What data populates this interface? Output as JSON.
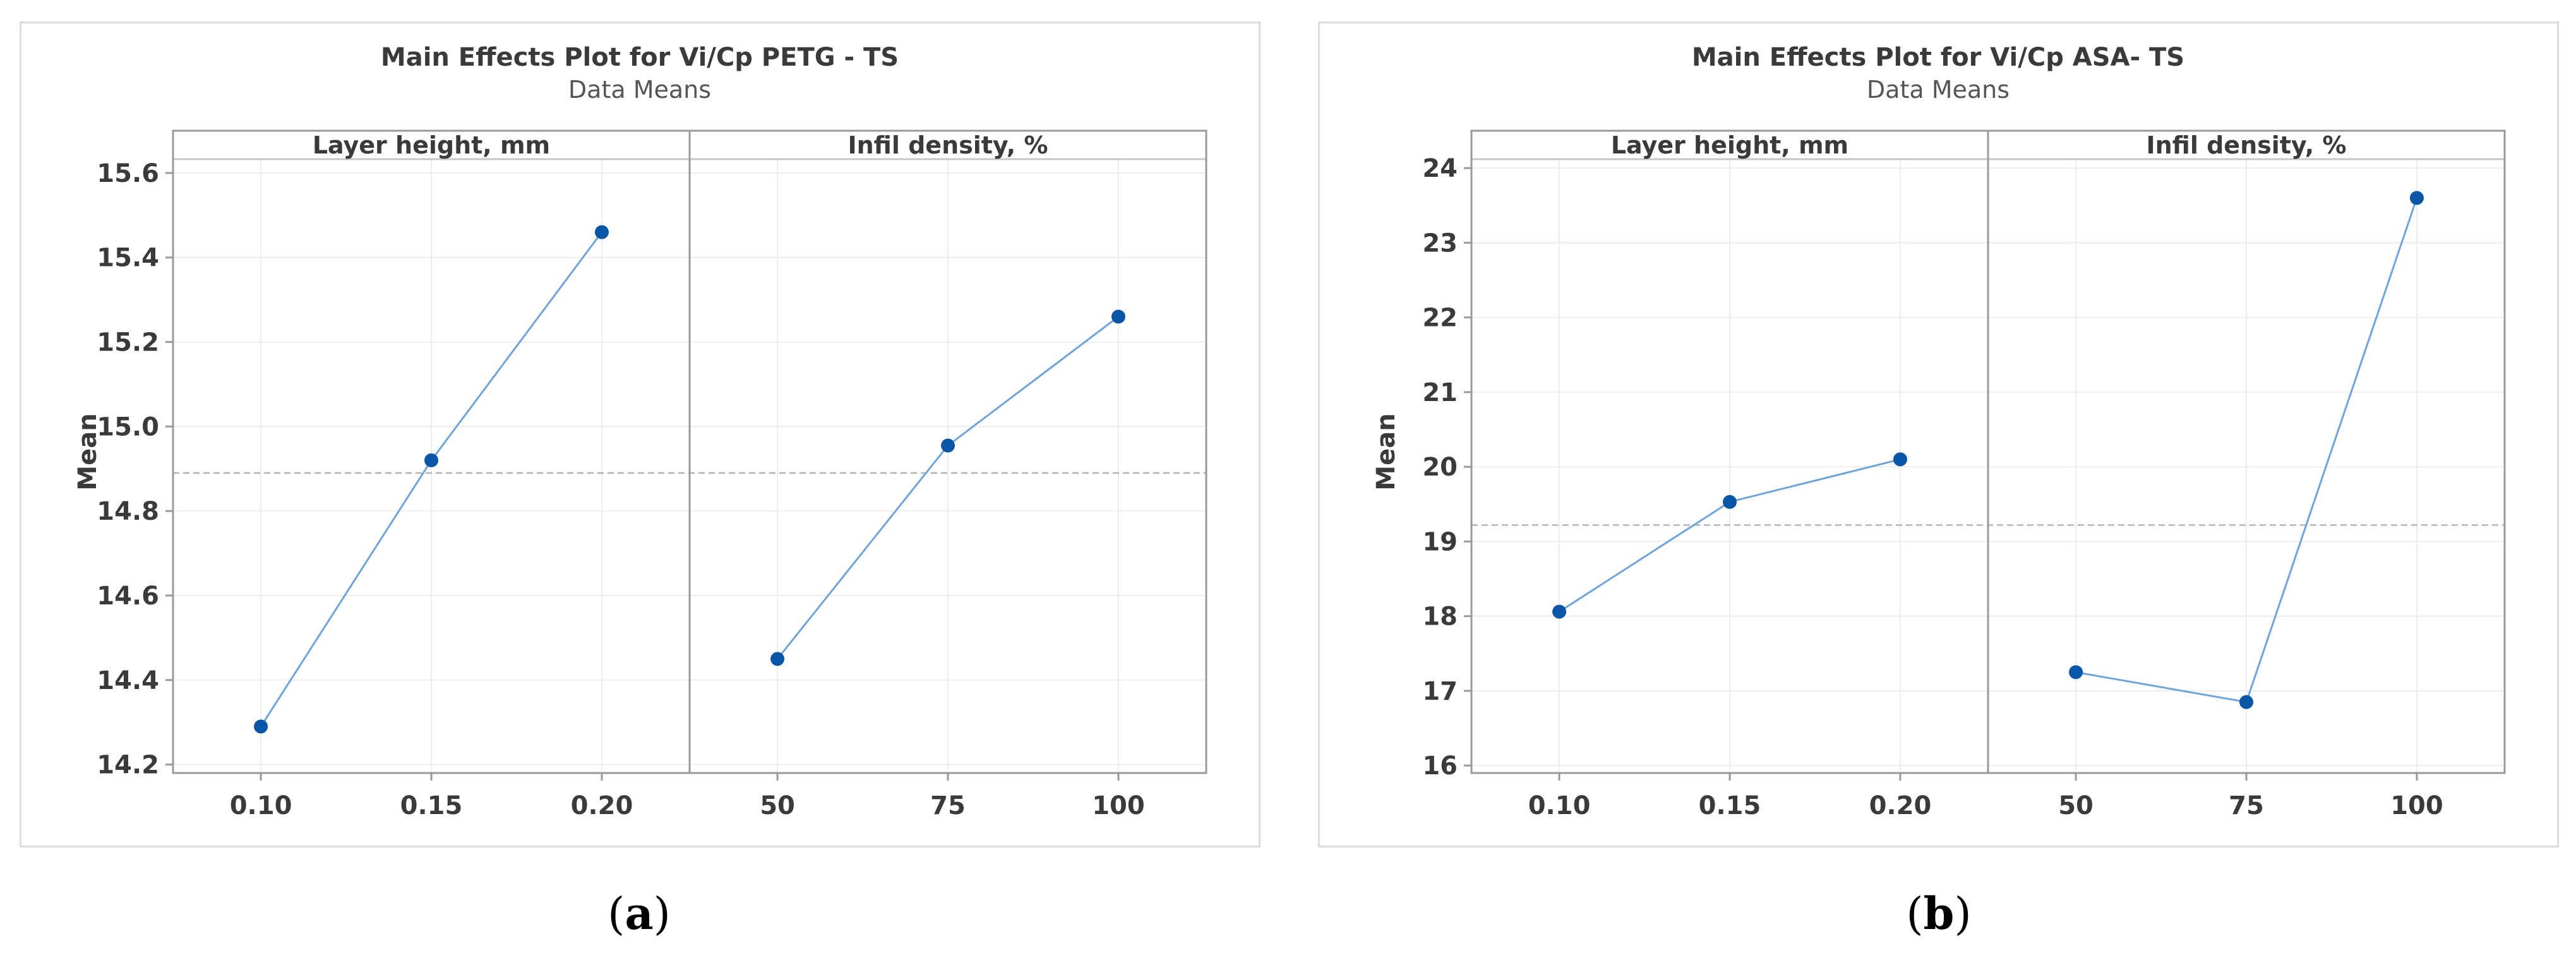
{
  "chart_data": [
    {
      "type": "line",
      "title": "Main Effects Plot for Vi/Cp PETG - TS",
      "subtitle": "Data Means",
      "ylabel": "Mean",
      "ylim": [
        14.18,
        15.7
      ],
      "yticks": [
        14.2,
        14.4,
        14.6,
        14.8,
        15.0,
        15.2,
        15.4,
        15.6
      ],
      "ytick_labels": [
        "14.2",
        "14.4",
        "14.6",
        "14.8",
        "15.0",
        "15.2",
        "15.4",
        "15.6"
      ],
      "reference_mean": 14.89,
      "grid": true,
      "marker_color": "#0a56a6",
      "line_color": "#6fa4d8",
      "panels": [
        {
          "label": "Layer height, mm",
          "categories": [
            "0.10",
            "0.15",
            "0.20"
          ],
          "values": [
            14.29,
            14.92,
            15.46
          ]
        },
        {
          "label": "Infil density, %",
          "categories": [
            "50",
            "75",
            "100"
          ],
          "values": [
            14.45,
            14.955,
            15.26
          ]
        }
      ]
    },
    {
      "type": "line",
      "title": "Main Effects Plot for Vi/Cp ASA- TS",
      "subtitle": "Data Means",
      "ylabel": "Mean",
      "ylim": [
        15.9,
        24.5
      ],
      "yticks": [
        16,
        17,
        18,
        19,
        20,
        21,
        22,
        23,
        24
      ],
      "ytick_labels": [
        "16",
        "17",
        "18",
        "19",
        "20",
        "21",
        "22",
        "23",
        "24"
      ],
      "reference_mean": 19.22,
      "grid": true,
      "marker_color": "#0a56a6",
      "line_color": "#6fa4d8",
      "panels": [
        {
          "label": "Layer height, mm",
          "categories": [
            "0.10",
            "0.15",
            "0.20"
          ],
          "values": [
            18.06,
            19.53,
            20.1
          ]
        },
        {
          "label": "Infil density, %",
          "categories": [
            "50",
            "75",
            "100"
          ],
          "values": [
            17.25,
            16.85,
            23.6
          ]
        }
      ]
    }
  ],
  "captions": {
    "a": "a",
    "b": "b"
  }
}
